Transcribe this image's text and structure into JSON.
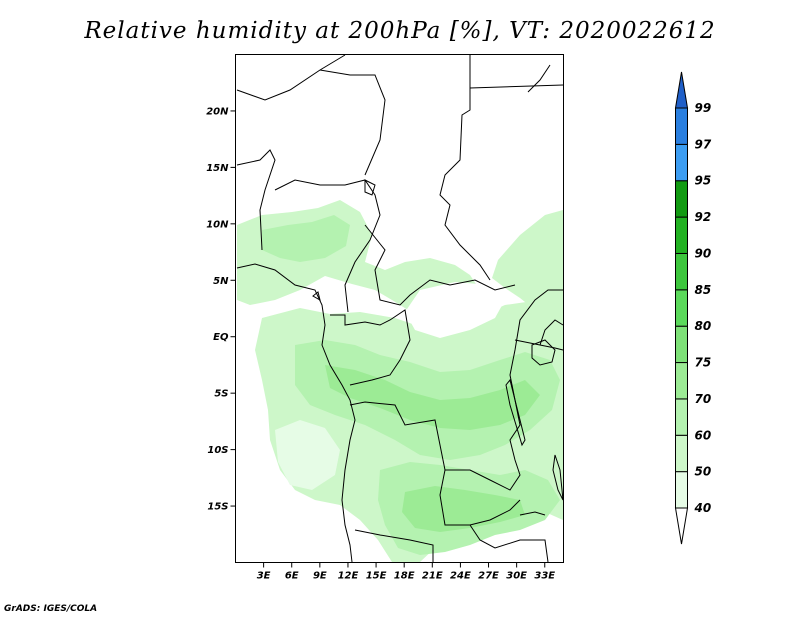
{
  "title": "Relative humidity at 200hPa [%], VT: 2020022612",
  "credit": "GrADS: IGES/COLA",
  "map": {
    "lon_range": [
      0,
      35
    ],
    "lat_range": [
      -20,
      25
    ],
    "lat_ticks": [
      {
        "value": 20,
        "label": "20N"
      },
      {
        "value": 15,
        "label": "15N"
      },
      {
        "value": 10,
        "label": "10N"
      },
      {
        "value": 5,
        "label": "5N"
      },
      {
        "value": 0,
        "label": "EQ"
      },
      {
        "value": -5,
        "label": "5S"
      },
      {
        "value": -10,
        "label": "10S"
      },
      {
        "value": -15,
        "label": "15S"
      }
    ],
    "lon_ticks": [
      {
        "value": 3,
        "label": "3E"
      },
      {
        "value": 6,
        "label": "6E"
      },
      {
        "value": 9,
        "label": "9E"
      },
      {
        "value": 12,
        "label": "12E"
      },
      {
        "value": 15,
        "label": "15E"
      },
      {
        "value": 18,
        "label": "18E"
      },
      {
        "value": 21,
        "label": "21E"
      },
      {
        "value": 24,
        "label": "24E"
      },
      {
        "value": 27,
        "label": "27E"
      },
      {
        "value": 30,
        "label": "30E"
      },
      {
        "value": 33,
        "label": "33E"
      }
    ]
  },
  "colorbar": {
    "levels": [
      {
        "label": "40",
        "color": "#e6fce6"
      },
      {
        "label": "50",
        "color": "#cdf7c9"
      },
      {
        "label": "60",
        "color": "#b4f2b0"
      },
      {
        "label": "70",
        "color": "#9ceb95"
      },
      {
        "label": "75",
        "color": "#7ee178"
      },
      {
        "label": "80",
        "color": "#5bd95b"
      },
      {
        "label": "85",
        "color": "#3dc63d"
      },
      {
        "label": "90",
        "color": "#22b222"
      },
      {
        "label": "92",
        "color": "#129b12"
      },
      {
        "label": "95",
        "color": "#3c9df2"
      },
      {
        "label": "97",
        "color": "#2a7fe0"
      },
      {
        "label": "99",
        "color": "#1f5fc8"
      }
    ],
    "under_color": "#ffffff",
    "over_color": "#1f5fc8"
  }
}
